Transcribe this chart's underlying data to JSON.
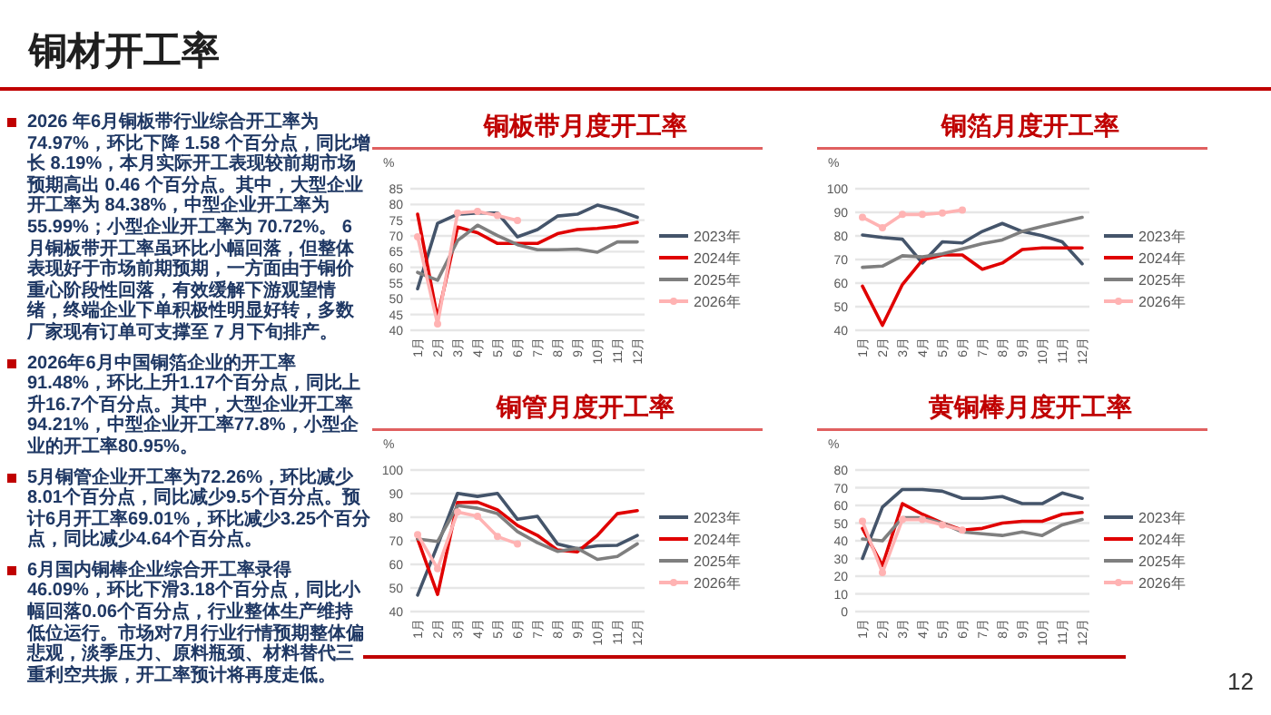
{
  "chart_data": [
    {
      "type": "other",
      "title": "铜材开工率",
      "annotations": [
        "2026 年6月铜板带行业综合开工率为 74.97%，环比下降 1.58 个百分点，同比增长 8.19%，本月实际开工表现较前期市场预期高出 0.46 个百分点。其中，大型企业开工率为 84.38%，中型企业开工率为 55.99%；小型企业开工率为 70.72%。 6 月铜板带开工率虽环比小幅回落，但整体表现好于市场前期预期，一方面由于铜价重心阶段性回落，有效缓解下游观望情绪，终端企业下单积极性明显好转，多数厂家现有订单可支撑至 7 月下旬排产。",
        "2026年6月中国铜箔企业的开工率91.48%，环比上升1.17个百分点，同比上升16.7个百分点。其中，大型企业开工率94.21%，中型企业开工率77.8%，小型企业的开工率80.95%。",
        "5月铜管企业开工率为72.26%，环比减少8.01个百分点，同比减少9.5个百分点。预计6月开工率69.01%，环比减少3.25个百分点，同比减少4.64个百分点。",
        "6月国内铜棒企业综合开工率录得46.09%，环比下滑3.18个百分点，同比小幅回落0.06个百分点，行业整体生产维持低位运行。市场对7月行业行情预期整体偏悲观，淡季压力、原料瓶颈、材料替代三重利空共振，开工率预计将再度走低。",
        "12"
      ]
    },
    {
      "type": "line",
      "title": "铜板带月度开工率",
      "ylabel": "%",
      "categories": [
        "1月",
        "2月",
        "3月",
        "4月",
        "5月",
        "6月",
        "7月",
        "8月",
        "9月",
        "10月",
        "11月",
        "12月"
      ],
      "ylim": [
        40,
        85
      ],
      "yticks": [
        40,
        45,
        50,
        55,
        60,
        65,
        70,
        75,
        80,
        85
      ],
      "grid": "y",
      "legend": "right",
      "series": [
        {
          "name": "2023年",
          "color": "#44546a",
          "values": [
            53.2,
            74,
            76.9,
            77.3,
            77.3,
            69.7,
            72,
            76.3,
            76.9,
            79.8,
            78.2,
            75.9
          ]
        },
        {
          "name": "2024年",
          "color": "#e00000",
          "values": [
            76.9,
            43.9,
            72.8,
            71,
            67.6,
            67.6,
            67.6,
            70.7,
            72,
            72.4,
            73,
            74.3
          ]
        },
        {
          "name": "2025年",
          "color": "#7f7f7f",
          "values": [
            58.4,
            55.9,
            68.5,
            73.4,
            70.1,
            67.2,
            65.6,
            65.6,
            65.8,
            64.8,
            68.1,
            68.1
          ]
        },
        {
          "name": "2026年",
          "color": "#ffb3b3",
          "marker": "circle",
          "values": [
            69.7,
            42,
            77.3,
            77.8,
            76.5,
            74.9,
            null,
            null,
            null,
            null,
            null,
            null
          ]
        }
      ]
    },
    {
      "type": "line",
      "title": "铜箔月度开工率",
      "ylabel": "%",
      "categories": [
        "1月",
        "2月",
        "3月",
        "4月",
        "5月",
        "6月",
        "7月",
        "8月",
        "9月",
        "10月",
        "11月",
        "12月"
      ],
      "ylim": [
        40,
        100
      ],
      "yticks": [
        40,
        50,
        60,
        70,
        80,
        90,
        100
      ],
      "grid": "y",
      "legend": "right",
      "series": [
        {
          "name": "2023年",
          "color": "#44546a",
          "values": [
            80.4,
            79.3,
            78.6,
            68.5,
            77.5,
            77,
            81.9,
            85.3,
            81.9,
            80.1,
            77.5,
            68.2
          ]
        },
        {
          "name": "2024年",
          "color": "#e00000",
          "values": [
            58.7,
            42.1,
            59.4,
            69.8,
            71.9,
            71.9,
            65.9,
            68.5,
            74.2,
            74.9,
            74.9,
            74.9
          ]
        },
        {
          "name": "2025年",
          "color": "#7f7f7f",
          "values": [
            66.7,
            67.2,
            71.6,
            71.1,
            72.4,
            74.5,
            76.7,
            78.3,
            81.9,
            84,
            86,
            87.9
          ]
        },
        {
          "name": "2026年",
          "color": "#ffb3b3",
          "marker": "circle",
          "values": [
            87.9,
            83.5,
            89.1,
            89.1,
            89.7,
            91,
            null,
            null,
            null,
            null,
            null,
            null
          ]
        }
      ]
    },
    {
      "type": "line",
      "title": "铜管月度开工率",
      "ylabel": "%",
      "categories": [
        "1月",
        "2月",
        "3月",
        "4月",
        "5月",
        "6月",
        "7月",
        "8月",
        "9月",
        "10月",
        "11月",
        "12月"
      ],
      "ylim": [
        40,
        100
      ],
      "yticks": [
        40,
        50,
        60,
        70,
        80,
        90,
        100
      ],
      "grid": "y",
      "legend": "right",
      "series": [
        {
          "name": "2023年",
          "color": "#44546a",
          "values": [
            47,
            68.1,
            90.1,
            88.8,
            90.1,
            79.1,
            80.4,
            68.7,
            66.6,
            67.9,
            68.1,
            72.3
          ]
        },
        {
          "name": "2024年",
          "color": "#e00000",
          "values": [
            70.8,
            47.3,
            86.2,
            86.4,
            83.1,
            76.5,
            72.3,
            66.1,
            65.3,
            72.3,
            81.5,
            82.8
          ]
        },
        {
          "name": "2025年",
          "color": "#7f7f7f",
          "values": [
            70.8,
            69.7,
            84.9,
            83.8,
            81.5,
            73.9,
            69.2,
            65.5,
            66.8,
            62.1,
            63.4,
            68.7
          ]
        },
        {
          "name": "2026年",
          "color": "#ffb3b3",
          "marker": "circle",
          "values": [
            72.6,
            58.2,
            82.2,
            80.4,
            71.8,
            68.7,
            null,
            null,
            null,
            null,
            null,
            null
          ]
        }
      ]
    },
    {
      "type": "line",
      "title": "黄铜棒月度开工率",
      "ylabel": "%",
      "categories": [
        "1月",
        "2月",
        "3月",
        "4月",
        "5月",
        "6月",
        "7月",
        "8月",
        "9月",
        "10月",
        "11月",
        "12月"
      ],
      "ylim": [
        0,
        80
      ],
      "yticks": [
        0,
        10,
        20,
        30,
        40,
        50,
        60,
        70,
        80
      ],
      "grid": "y",
      "legend": "right",
      "series": [
        {
          "name": "2023年",
          "color": "#44546a",
          "values": [
            30,
            59,
            69,
            69,
            68,
            64,
            64,
            65,
            61,
            61,
            67,
            64
          ]
        },
        {
          "name": "2024年",
          "color": "#e00000",
          "values": [
            47,
            26,
            61,
            55,
            50,
            46,
            47,
            50,
            51,
            51,
            55,
            56
          ]
        },
        {
          "name": "2025年",
          "color": "#7f7f7f",
          "values": [
            41,
            40,
            53,
            53,
            50,
            45,
            44,
            43,
            45,
            43,
            49,
            52
          ]
        },
        {
          "name": "2026年",
          "color": "#ffb3b3",
          "marker": "circle",
          "values": [
            51,
            22,
            52,
            52,
            49,
            46,
            null,
            null,
            null,
            null,
            null,
            null
          ]
        }
      ]
    }
  ]
}
